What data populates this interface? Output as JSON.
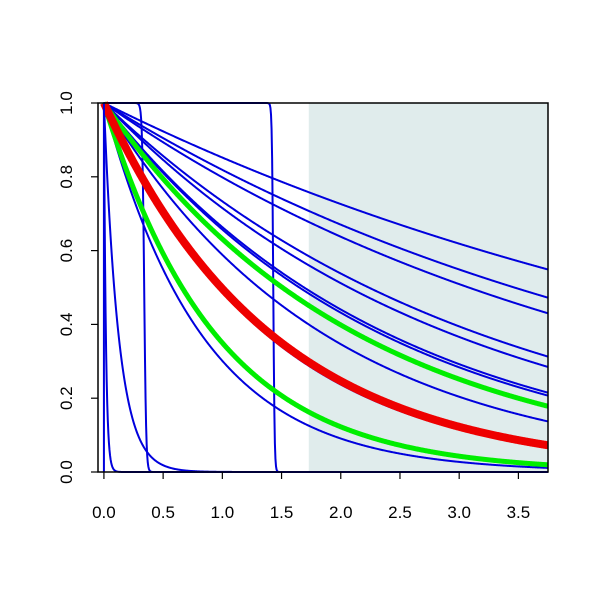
{
  "chart_data": {
    "type": "line",
    "title": "",
    "xlabel": "",
    "ylabel": "",
    "xlim": [
      -0.05,
      3.75
    ],
    "ylim": [
      0,
      1
    ],
    "x_ticks": [
      "0.0",
      "0.5",
      "1.0",
      "1.5",
      "2.0",
      "2.5",
      "3.0",
      "3.5"
    ],
    "y_ticks": [
      "0.0",
      "0.2",
      "0.4",
      "0.6",
      "0.8",
      "1.0"
    ],
    "shaded_region": {
      "x_from": 1.73,
      "x_to": 3.75,
      "color": "#e0ecec"
    },
    "grid": false,
    "legend": "none",
    "colors": {
      "blue": "#0000dd",
      "green": "#00ee00",
      "red": "#ee0000",
      "axis": "#000000"
    },
    "series": [
      {
        "color": "blue",
        "kind": "exp",
        "k": 0.16
      },
      {
        "color": "blue",
        "kind": "exp",
        "k": 0.2
      },
      {
        "color": "blue",
        "kind": "exp",
        "k": 0.225
      },
      {
        "color": "blue",
        "kind": "exp",
        "k": 0.31
      },
      {
        "color": "blue",
        "kind": "exp",
        "k": 0.335
      },
      {
        "color": "blue",
        "kind": "exp",
        "k": 0.41
      },
      {
        "color": "blue",
        "kind": "exp",
        "k": 0.42
      },
      {
        "color": "blue",
        "kind": "exp",
        "k": 0.53
      },
      {
        "color": "blue",
        "kind": "exp",
        "k": 0.7
      },
      {
        "color": "blue",
        "kind": "exp",
        "k": 0.72
      },
      {
        "color": "blue",
        "kind": "exp",
        "k": 1.2
      },
      {
        "color": "blue",
        "kind": "exp",
        "k": 8
      },
      {
        "color": "blue",
        "kind": "exp",
        "k": 60
      },
      {
        "color": "blue",
        "kind": "step",
        "k": 0.34,
        "steep": 120
      },
      {
        "color": "blue",
        "kind": "step",
        "k": 1.43,
        "steep": 180
      },
      {
        "color": "green",
        "kind": "exp",
        "k": 0.46
      },
      {
        "color": "green",
        "kind": "exp",
        "k": 1.05
      },
      {
        "color": "red",
        "kind": "exp",
        "k": 0.7
      }
    ]
  }
}
